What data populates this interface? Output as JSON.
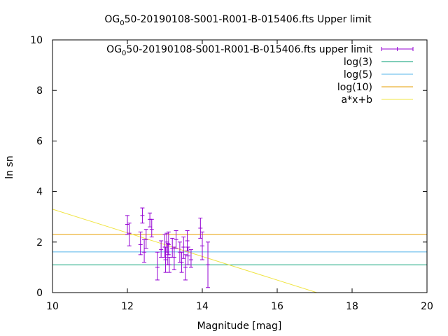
{
  "chart_data": {
    "type": "scatter",
    "title_main": "OG",
    "title_sub": "0",
    "title_rest": "50-20190108-S001-R001-B-015406.fts Upper limit",
    "xlabel": "Magnitude [mag]",
    "ylabel": "ln sn",
    "xlim": [
      10,
      20
    ],
    "ylim": [
      0,
      10
    ],
    "xticks": [
      10,
      12,
      14,
      16,
      18,
      20
    ],
    "yticks": [
      0,
      2,
      4,
      6,
      8,
      10
    ],
    "grid": false,
    "legend_position": "top-right",
    "series": [
      {
        "name_main": "OG",
        "name_sub": "0",
        "name_rest": "50-20190108-S001-R001-B-015406.fts upper limit",
        "kind": "errorbar",
        "color": "#9400d3",
        "points": [
          {
            "x": 12.0,
            "y": 2.7,
            "ylow": 2.3,
            "yhigh": 3.05
          },
          {
            "x": 12.05,
            "y": 2.35,
            "ylow": 1.85,
            "yhigh": 2.75
          },
          {
            "x": 12.35,
            "y": 1.9,
            "ylow": 1.5,
            "yhigh": 2.4
          },
          {
            "x": 12.4,
            "y": 3.05,
            "ylow": 2.75,
            "yhigh": 3.35
          },
          {
            "x": 12.45,
            "y": 1.6,
            "ylow": 1.2,
            "yhigh": 2.1
          },
          {
            "x": 12.5,
            "y": 2.1,
            "ylow": 1.75,
            "yhigh": 2.5
          },
          {
            "x": 12.6,
            "y": 2.9,
            "ylow": 2.6,
            "yhigh": 3.15
          },
          {
            "x": 12.65,
            "y": 2.5,
            "ylow": 2.2,
            "yhigh": 2.9
          },
          {
            "x": 12.8,
            "y": 1.0,
            "ylow": 0.5,
            "yhigh": 1.6
          },
          {
            "x": 12.9,
            "y": 1.7,
            "ylow": 1.4,
            "yhigh": 2.05
          },
          {
            "x": 13.0,
            "y": 1.8,
            "ylow": 1.4,
            "yhigh": 2.3
          },
          {
            "x": 13.02,
            "y": 1.3,
            "ylow": 0.8,
            "yhigh": 1.8
          },
          {
            "x": 13.05,
            "y": 2.0,
            "ylow": 1.6,
            "yhigh": 2.35
          },
          {
            "x": 13.08,
            "y": 1.5,
            "ylow": 1.1,
            "yhigh": 1.95
          },
          {
            "x": 13.1,
            "y": 1.9,
            "ylow": 1.5,
            "yhigh": 2.4
          },
          {
            "x": 13.12,
            "y": 1.1,
            "ylow": 0.8,
            "yhigh": 1.4
          },
          {
            "x": 13.2,
            "y": 1.75,
            "ylow": 1.4,
            "yhigh": 2.15
          },
          {
            "x": 13.25,
            "y": 1.4,
            "ylow": 0.9,
            "yhigh": 1.8
          },
          {
            "x": 13.3,
            "y": 2.1,
            "ylow": 1.75,
            "yhigh": 2.45
          },
          {
            "x": 13.4,
            "y": 1.6,
            "ylow": 1.2,
            "yhigh": 2.0
          },
          {
            "x": 13.45,
            "y": 1.2,
            "ylow": 0.8,
            "yhigh": 1.6
          },
          {
            "x": 13.5,
            "y": 1.8,
            "ylow": 1.35,
            "yhigh": 2.2
          },
          {
            "x": 13.55,
            "y": 1.0,
            "ylow": 0.5,
            "yhigh": 1.5
          },
          {
            "x": 13.6,
            "y": 2.05,
            "ylow": 1.65,
            "yhigh": 2.45
          },
          {
            "x": 13.62,
            "y": 1.45,
            "ylow": 1.1,
            "yhigh": 1.8
          },
          {
            "x": 13.7,
            "y": 1.3,
            "ylow": 1.0,
            "yhigh": 1.7
          },
          {
            "x": 13.95,
            "y": 2.55,
            "ylow": 2.15,
            "yhigh": 2.95
          },
          {
            "x": 14.0,
            "y": 1.85,
            "ylow": 1.3,
            "yhigh": 2.4
          },
          {
            "x": 14.15,
            "y": 1.1,
            "ylow": 0.2,
            "yhigh": 2.0
          }
        ]
      },
      {
        "name": "log(3)",
        "kind": "hline",
        "y": 1.0986,
        "color": "#009e73"
      },
      {
        "name": "log(5)",
        "kind": "hline",
        "y": 1.6094,
        "color": "#56b4e9"
      },
      {
        "name": "log(10)",
        "kind": "hline",
        "y": 2.3026,
        "color": "#e69f00"
      },
      {
        "name": "a*x+b",
        "kind": "fitline",
        "color": "#f0e442",
        "a": -0.4674,
        "b": 7.9737
      }
    ]
  }
}
